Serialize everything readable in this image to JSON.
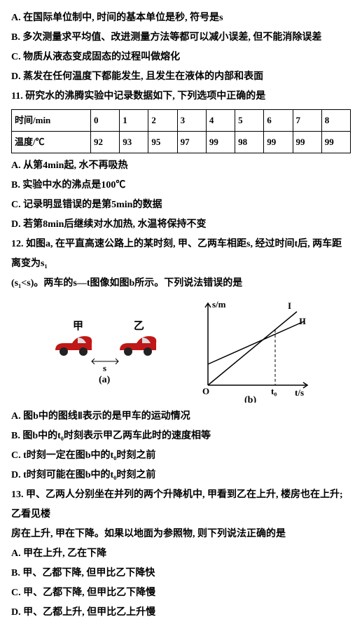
{
  "lines_before_table": [
    "A. 在国际单位制中, 时间的基本单位是秒, 符号是s",
    "B. 多次测量求平均值、改进测量方法等都可以减小误差, 但不能消除误差",
    "C. 物质从液态变成固态的过程叫做熔化",
    "D. 蒸发在任何温度下都能发生, 且发生在液体的内部和表面",
    "11. 研究水的沸腾实验中记录数据如下, 下列选项中正确的是"
  ],
  "table": {
    "header": [
      "时间/min",
      "0",
      "1",
      "2",
      "3",
      "4",
      "5",
      "6",
      "7",
      "8"
    ],
    "row": [
      "温度/℃",
      "92",
      "93",
      "95",
      "97",
      "99",
      "98",
      "99",
      "99",
      "99"
    ],
    "col_widths": [
      "58px",
      "28px",
      "28px",
      "28px",
      "28px",
      "28px",
      "28px",
      "28px",
      "28px",
      "28px"
    ]
  },
  "lines_after_table": [
    "A. 从第4min起, 水不再吸热",
    "B. 实验中水的沸点是100℃",
    "C. 记录明显错误的是第5min的数据",
    "D. 若第8min后继续对水加热, 水温将保持不变",
    "12. 如图a, 在平直高速公路上的某时刻, 甲、乙两车相距s, 经过时间t后, 两车距离变为s₁",
    "(s₁<s)。两车的s—t图像如图b所示。下列说法错误的是"
  ],
  "figure": {
    "car_label_left": "甲",
    "car_label_right": "乙",
    "s_label": "s",
    "a_label": "(a)",
    "b_label": "(b)",
    "y_axis": "s/m",
    "x_axis": "t/s",
    "I": "I",
    "II": "II",
    "t0": "t₀",
    "car_color": "#c01818",
    "arrow_color": "#000000",
    "axis_color": "#000000",
    "line_color": "#000000",
    "dash_color": "#000000"
  },
  "lines_after_figure": [
    "A. 图b中的图线Ⅱ表示的是甲车的运动情况",
    "B. 图b中的t₀时刻表示甲乙两车此时的速度相等",
    "C. t时刻一定在图b中的t₀时刻之前",
    "D. t时刻可能在图b中的t₀时刻之前",
    "13. 甲、乙两人分别坐在并列的两个升降机中, 甲看到乙在上升, 楼房也在上升; 乙看见楼",
    "房在上升, 甲在下降。如果以地面为参照物, 则下列说法正确的是",
    "A. 甲在上升, 乙在下降",
    "B. 甲、乙都下降, 但甲比乙下降快",
    "C. 甲、乙都下降, 但甲比乙下降慢",
    "D. 甲、乙都上升, 但甲比乙上升慢"
  ]
}
